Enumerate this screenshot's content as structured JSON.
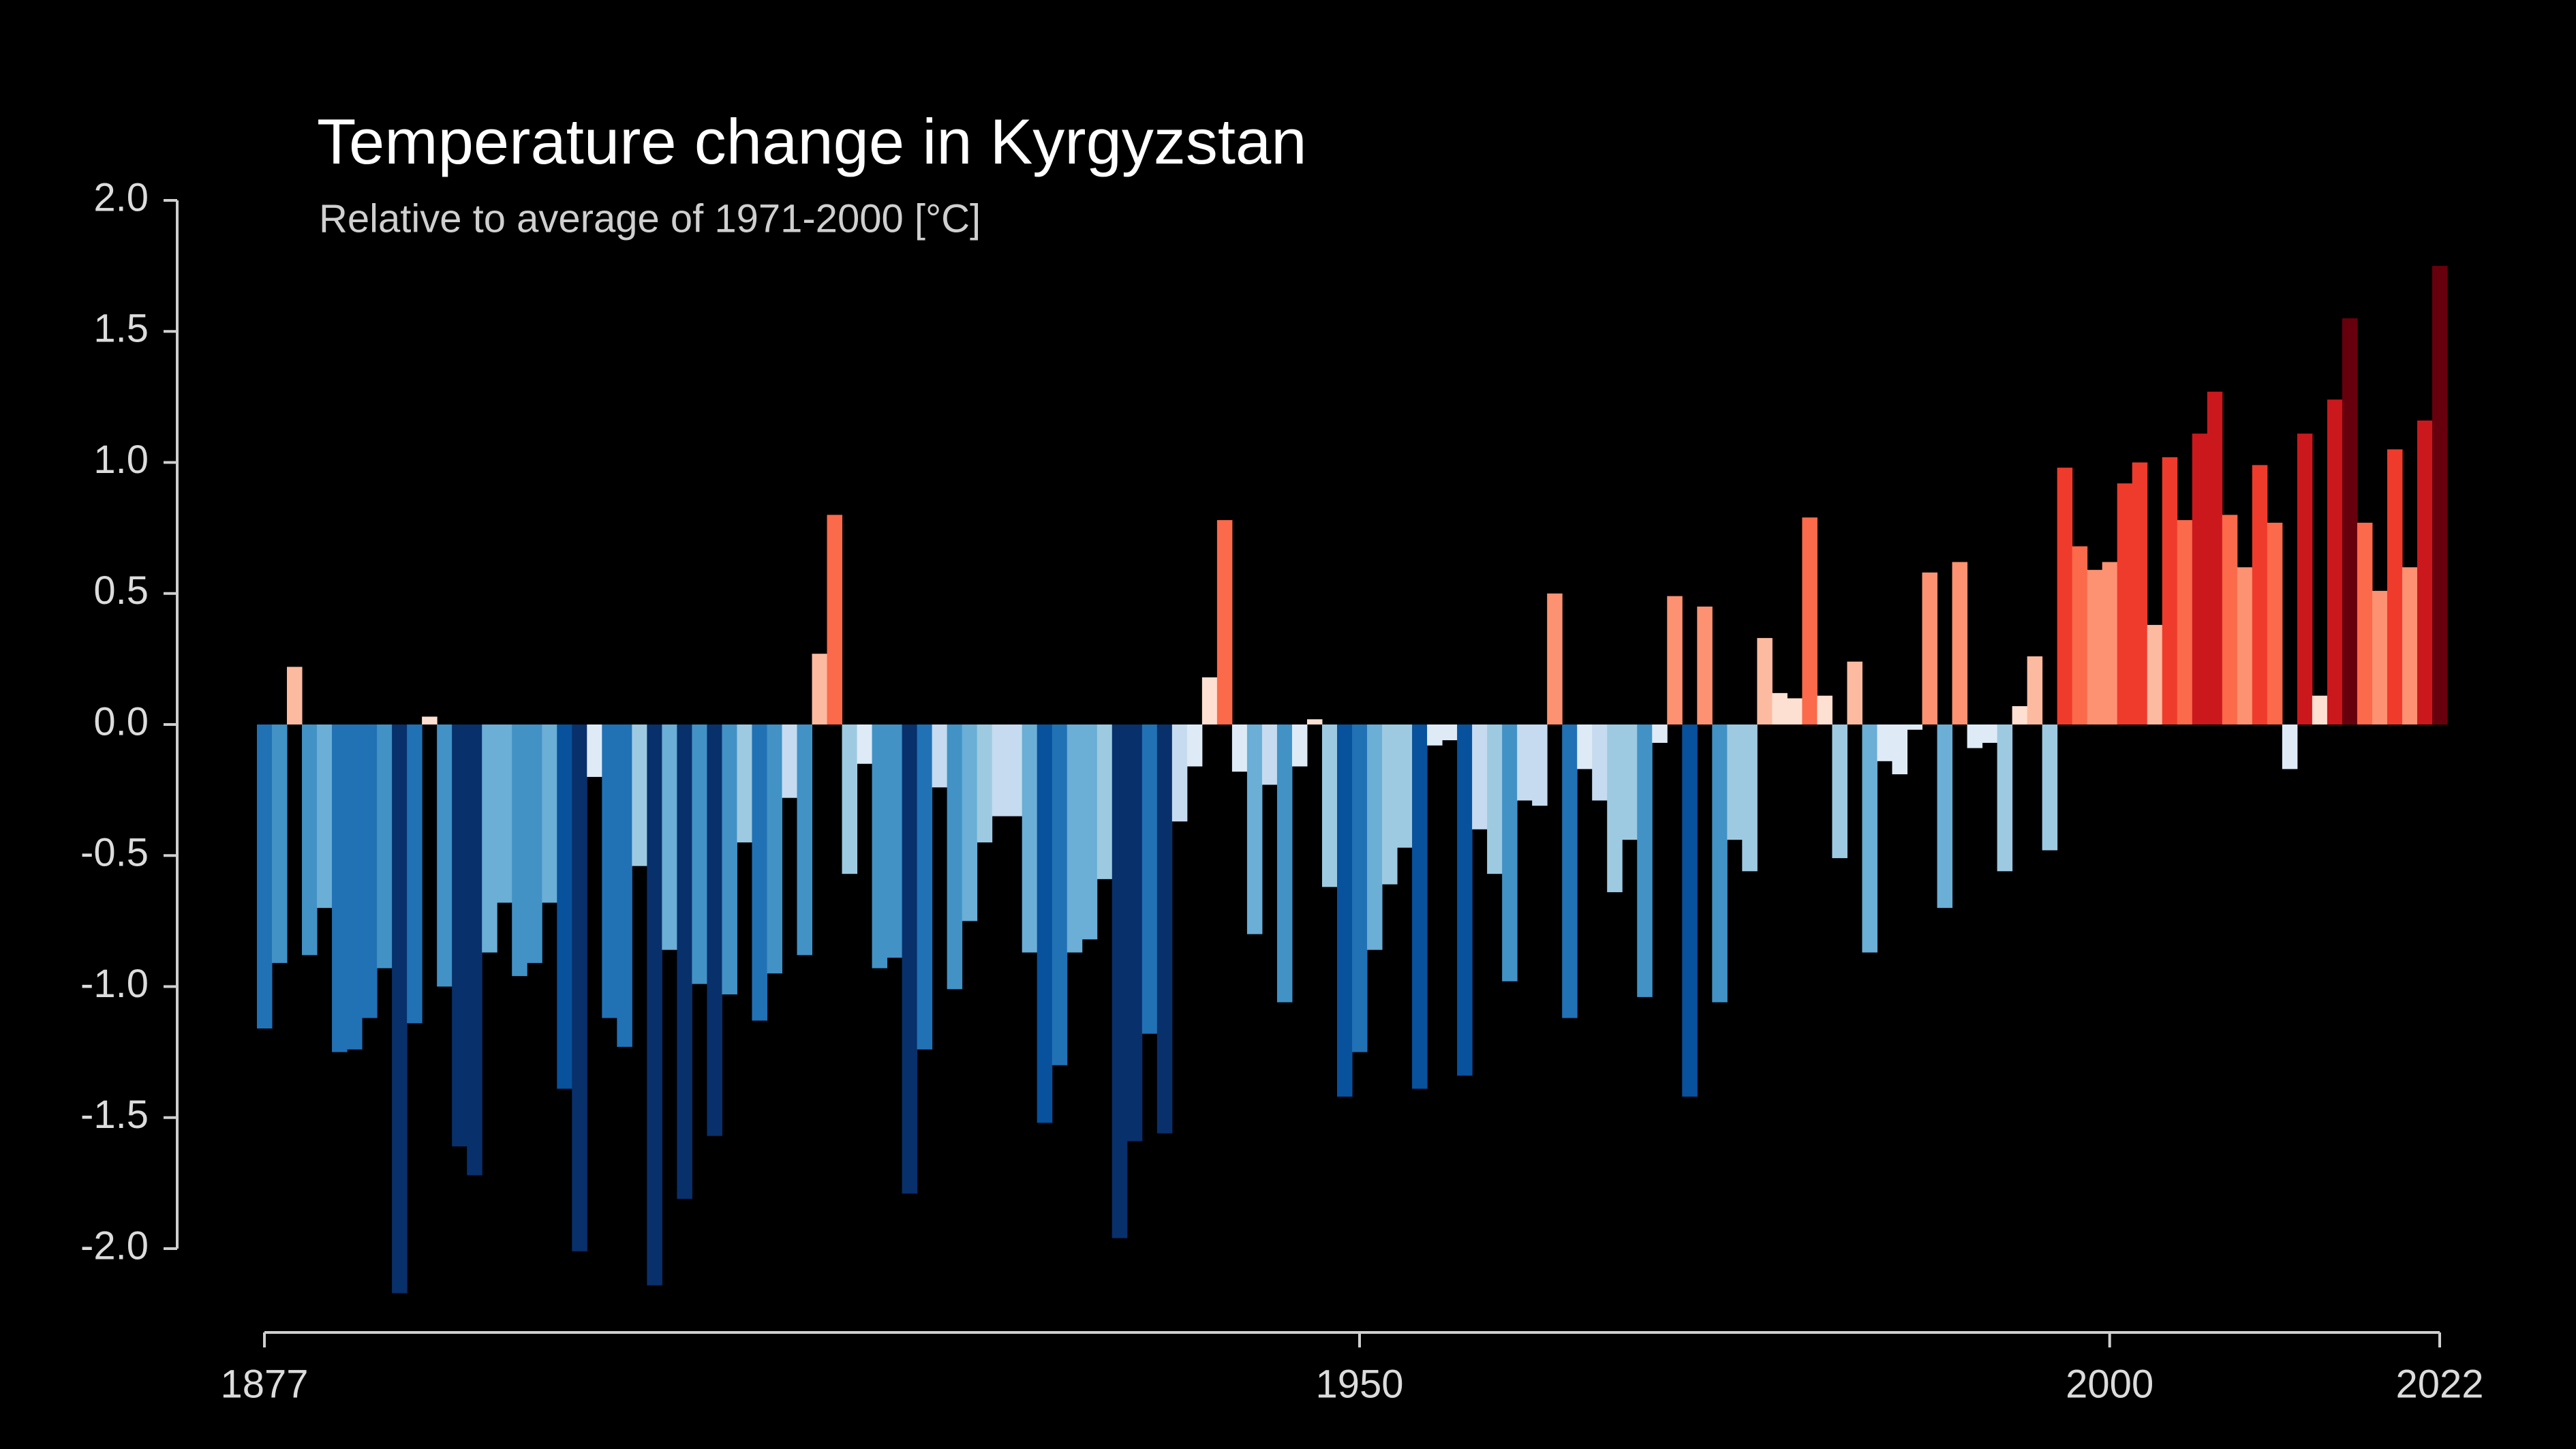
{
  "chart_data": {
    "type": "bar",
    "title": "Temperature change in Kyrgyzstan",
    "subtitle": "Relative to average of 1971-2000  [°C]",
    "x": [
      1877,
      1878,
      1879,
      1880,
      1881,
      1882,
      1883,
      1884,
      1885,
      1886,
      1887,
      1888,
      1889,
      1890,
      1891,
      1892,
      1893,
      1894,
      1895,
      1896,
      1897,
      1898,
      1899,
      1900,
      1901,
      1902,
      1903,
      1904,
      1905,
      1906,
      1907,
      1908,
      1909,
      1910,
      1911,
      1912,
      1913,
      1914,
      1915,
      1916,
      1917,
      1918,
      1919,
      1920,
      1921,
      1922,
      1923,
      1924,
      1925,
      1926,
      1927,
      1928,
      1929,
      1930,
      1931,
      1932,
      1933,
      1934,
      1935,
      1936,
      1937,
      1938,
      1939,
      1940,
      1941,
      1942,
      1943,
      1944,
      1945,
      1946,
      1947,
      1948,
      1949,
      1950,
      1951,
      1952,
      1953,
      1954,
      1955,
      1956,
      1957,
      1958,
      1959,
      1960,
      1961,
      1962,
      1963,
      1964,
      1965,
      1966,
      1967,
      1968,
      1969,
      1970,
      1971,
      1972,
      1973,
      1974,
      1975,
      1976,
      1977,
      1978,
      1979,
      1980,
      1981,
      1982,
      1983,
      1984,
      1985,
      1986,
      1987,
      1988,
      1989,
      1990,
      1991,
      1992,
      1993,
      1994,
      1995,
      1996,
      1997,
      1998,
      1999,
      2000,
      2001,
      2002,
      2003,
      2004,
      2005,
      2006,
      2007,
      2008,
      2009,
      2010,
      2011,
      2012,
      2013,
      2014,
      2015,
      2016,
      2017,
      2018,
      2019,
      2020,
      2021,
      2022
    ],
    "values": [
      -1.16,
      -0.91,
      0.22,
      -0.88,
      -0.7,
      -1.25,
      -1.24,
      -1.12,
      -0.93,
      -2.17,
      -1.14,
      0.03,
      -1.0,
      -1.61,
      -1.72,
      -0.87,
      -0.68,
      -0.96,
      -0.91,
      -0.68,
      -1.39,
      -2.01,
      -0.2,
      -1.12,
      -1.23,
      -0.54,
      -2.14,
      -0.86,
      -1.81,
      -0.99,
      -1.57,
      -1.03,
      -0.45,
      -1.13,
      -0.95,
      -0.28,
      -0.88,
      0.27,
      0.8,
      -0.57,
      -0.15,
      -0.93,
      -0.89,
      -1.79,
      -1.24,
      -0.24,
      -1.01,
      -0.75,
      -0.45,
      -0.35,
      -0.35,
      -0.87,
      -1.52,
      -1.3,
      -0.87,
      -0.82,
      -0.59,
      -1.96,
      -1.59,
      -1.18,
      -1.56,
      -0.37,
      -0.16,
      0.18,
      0.78,
      -0.18,
      -0.8,
      -0.23,
      -1.06,
      -0.16,
      0.02,
      -0.62,
      -1.42,
      -1.25,
      -0.86,
      -0.61,
      -0.47,
      -1.39,
      -0.08,
      -0.06,
      -1.34,
      -0.4,
      -0.57,
      -0.98,
      -0.29,
      -0.31,
      0.5,
      -1.12,
      -0.17,
      -0.29,
      -0.64,
      -0.44,
      -1.04,
      -0.07,
      0.49,
      -1.42,
      0.45,
      -1.06,
      -0.44,
      -0.56,
      0.33,
      0.12,
      0.1,
      0.79,
      0.11,
      -0.51,
      0.24,
      -0.87,
      -0.14,
      -0.19,
      -0.02,
      0.58,
      -0.7,
      0.62,
      -0.09,
      -0.07,
      -0.56,
      0.07,
      0.26,
      -0.48,
      0.98,
      0.68,
      0.59,
      0.62,
      0.92,
      1.0,
      0.38,
      1.02,
      0.78,
      1.11,
      1.27,
      0.8,
      0.6,
      0.99,
      0.77,
      -0.17,
      1.11,
      0.11,
      1.24,
      1.55,
      0.77,
      0.51,
      1.05,
      0.6,
      1.16,
      1.75
    ],
    "colormap": [
      "#08306b",
      "#08519c",
      "#2171b5",
      "#4292c6",
      "#6baed6",
      "#9ecae1",
      "#c6dbef",
      "#deebf7",
      "#fee0d2",
      "#fcbba1",
      "#fc9272",
      "#fb6a4a",
      "#ef3b2c",
      "#cb181d",
      "#a50f15",
      "#67000d"
    ],
    "color_limits": [
      -1.75,
      1.75
    ],
    "ylim": [
      -2.0,
      2.0
    ],
    "yticks": [
      {
        "value": 2.0,
        "label": "2.0"
      },
      {
        "value": 1.5,
        "label": "1.5"
      },
      {
        "value": 1.0,
        "label": "1.0"
      },
      {
        "value": 0.5,
        "label": "0.5"
      },
      {
        "value": 0.0,
        "label": "0.0"
      },
      {
        "value": -0.5,
        "label": "-0.5"
      },
      {
        "value": -1.0,
        "label": "-1.0"
      },
      {
        "value": -1.5,
        "label": "-1.5"
      },
      {
        "value": -2.0,
        "label": "-2.0"
      }
    ],
    "xlim": [
      1877,
      2022
    ],
    "xticks": [
      1877,
      1950,
      2000,
      2022
    ]
  }
}
